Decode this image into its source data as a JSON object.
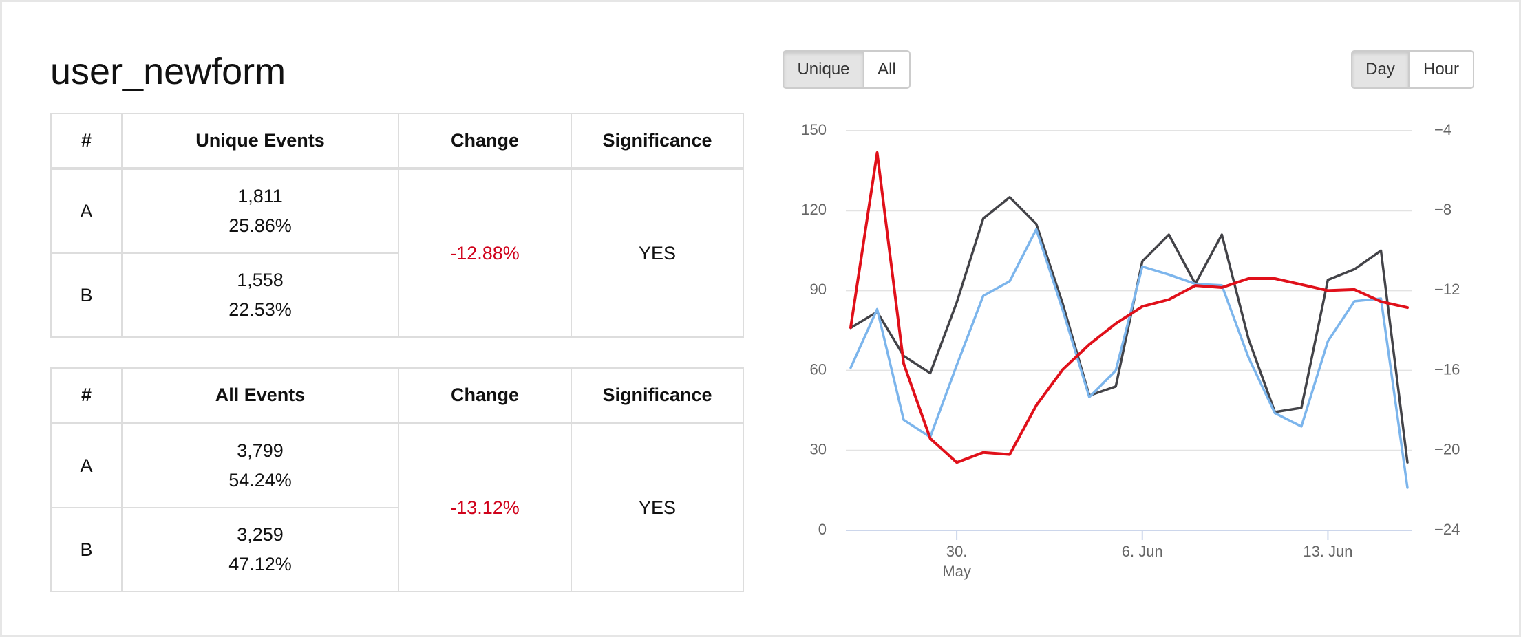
{
  "title": "user_newform",
  "metric_toggle": [
    "Unique",
    "All"
  ],
  "interval_toggle": [
    "Day",
    "Hour"
  ],
  "tables": [
    {
      "headers": [
        "#",
        "Unique Events",
        "Change",
        "Significance"
      ],
      "rows": [
        {
          "variant": "A",
          "count": "1,811",
          "share": "25.86%"
        },
        {
          "variant": "B",
          "count": "1,558",
          "share": "22.53%"
        }
      ],
      "change": "-12.88%",
      "significance": "YES"
    },
    {
      "headers": [
        "#",
        "All Events",
        "Change",
        "Significance"
      ],
      "rows": [
        {
          "variant": "A",
          "count": "3,799",
          "share": "54.24%"
        },
        {
          "variant": "B",
          "count": "3,259",
          "share": "47.12%"
        }
      ],
      "change": "-13.12%",
      "significance": "YES"
    }
  ],
  "chart_data": {
    "type": "line",
    "categories": [
      null,
      null,
      null,
      null,
      [
        "30.",
        "May"
      ],
      null,
      null,
      null,
      null,
      null,
      null,
      "6. Jun",
      null,
      null,
      null,
      null,
      null,
      null,
      "13. Jun",
      null,
      null,
      null
    ],
    "series": [
      {
        "color": "#434348",
        "values": [
          76,
          82,
          65.5,
          59,
          85.5,
          117,
          125,
          115,
          85,
          50.6,
          54,
          101,
          111,
          92.5,
          111,
          72,
          44.4,
          46,
          94,
          98,
          105,
          25.5
        ]
      },
      {
        "color": "#7cb5ec",
        "values": [
          61,
          83,
          41.5,
          35,
          62,
          88,
          93.5,
          113,
          82.6,
          50,
          60,
          99,
          96,
          92.5,
          92,
          65,
          44,
          39,
          71,
          86,
          87,
          16
        ]
      },
      {
        "color": "#e0101a",
        "axis": "y2",
        "values": [
          -13.85,
          -5.1,
          -15.65,
          -19.4,
          -20.6,
          -20.1,
          -20.2,
          -17.75,
          -15.95,
          -14.7,
          -13.65,
          -12.8,
          -12.45,
          -11.75,
          -11.85,
          -11.4,
          -11.4,
          -11.7,
          -12,
          -11.95,
          -12.55,
          -12.85
        ]
      }
    ],
    "ylim": [
      0,
      150
    ],
    "yticks": [
      0,
      30,
      60,
      90,
      120,
      150
    ],
    "y2lim": [
      -24,
      -4
    ],
    "y2ticks": [
      {
        "value": -24,
        "label": "−24"
      },
      {
        "value": -20,
        "label": "−20"
      },
      {
        "value": -16,
        "label": "−16"
      },
      {
        "value": -12,
        "label": "−12"
      },
      {
        "value": -8,
        "label": "−8"
      },
      {
        "value": -4,
        "label": "−4"
      }
    ],
    "grid": true
  }
}
